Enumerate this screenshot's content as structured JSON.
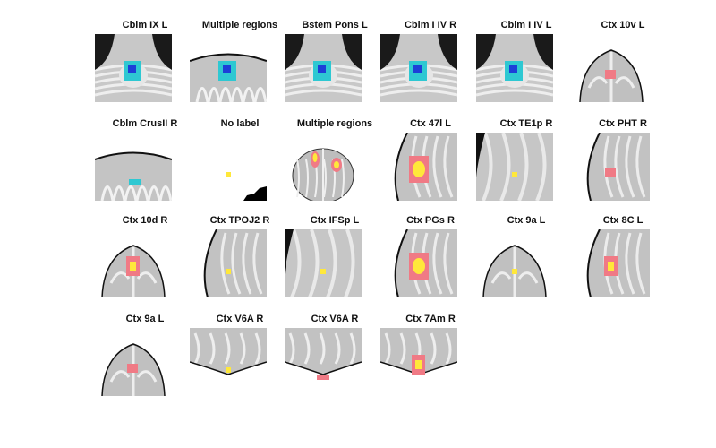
{
  "colors": {
    "background": "#ffffff",
    "label": "#111111",
    "brain_light": "#e6e6e6",
    "brain_mid": "#b9b9b9",
    "brain_dark": "#8a8a8a",
    "activation_warm_outer": "#f07a85",
    "activation_warm_inner": "#ffe83a",
    "activation_cool_outer": "#2ec8d2",
    "activation_cool_inner": "#1d3fd8"
  },
  "panels": [
    {
      "label": "Cblm IX L",
      "row": 0,
      "col": 0,
      "view": "cerebellum-axial",
      "overlay": "cool"
    },
    {
      "label": "Multiple regions",
      "row": 0,
      "col": 1,
      "view": "cerebellum-edge",
      "overlay": "cool"
    },
    {
      "label": "Bstem Pons L",
      "row": 0,
      "col": 2,
      "view": "brainstem",
      "overlay": "cool"
    },
    {
      "label": "Cblm I IV R",
      "row": 0,
      "col": 3,
      "view": "cerebellum-axial",
      "overlay": "cool"
    },
    {
      "label": "Cblm I IV L",
      "row": 0,
      "col": 4,
      "view": "cerebellum-axial",
      "overlay": "cool"
    },
    {
      "label": "Ctx 10v L",
      "row": 0,
      "col": 5,
      "view": "frontal-pole",
      "overlay": "warm-small"
    },
    {
      "label": "Cblm CrusII R",
      "row": 1,
      "col": 0,
      "view": "cerebellum-edge",
      "overlay": "cool-small"
    },
    {
      "label": "No label",
      "row": 1,
      "col": 1,
      "view": "blank",
      "overlay": "yellow-dot"
    },
    {
      "label": "Multiple regions",
      "row": 1,
      "col": 2,
      "view": "whole-brain",
      "overlay": "multi"
    },
    {
      "label": "Ctx 47l L",
      "row": 1,
      "col": 3,
      "view": "cortex-edge",
      "overlay": "warm-large"
    },
    {
      "label": "Ctx TE1p R",
      "row": 1,
      "col": 4,
      "view": "cortex-gyri",
      "overlay": "yellow-dot"
    },
    {
      "label": "Ctx PHT R",
      "row": 1,
      "col": 5,
      "view": "cortex-edge",
      "overlay": "warm-small"
    },
    {
      "label": "Ctx 10d R",
      "row": 2,
      "col": 0,
      "view": "frontal-pole",
      "overlay": "warm-medium"
    },
    {
      "label": "Ctx TPOJ2 R",
      "row": 2,
      "col": 1,
      "view": "cortex-edge",
      "overlay": "yellow-dot"
    },
    {
      "label": "Ctx IFSp L",
      "row": 2,
      "col": 2,
      "view": "cortex-gyri",
      "overlay": "yellow-dot"
    },
    {
      "label": "Ctx PGs R",
      "row": 2,
      "col": 3,
      "view": "cortex-edge",
      "overlay": "warm-large"
    },
    {
      "label": "Ctx 9a L",
      "row": 2,
      "col": 4,
      "view": "frontal-pole",
      "overlay": "yellow-dot"
    },
    {
      "label": "Ctx 8C L",
      "row": 2,
      "col": 5,
      "view": "cortex-edge",
      "overlay": "warm-medium"
    },
    {
      "label": "Ctx 9a L",
      "row": 3,
      "col": 0,
      "view": "frontal-pole",
      "overlay": "warm-small"
    },
    {
      "label": "Ctx V6A R",
      "row": 3,
      "col": 1,
      "view": "occipital-top",
      "overlay": "yellow-dot"
    },
    {
      "label": "Ctx V6A R",
      "row": 3,
      "col": 2,
      "view": "occipital-top",
      "overlay": "warm-bar"
    },
    {
      "label": "Ctx 7Am R",
      "row": 3,
      "col": 3,
      "view": "occipital-top",
      "overlay": "warm-medium"
    }
  ]
}
